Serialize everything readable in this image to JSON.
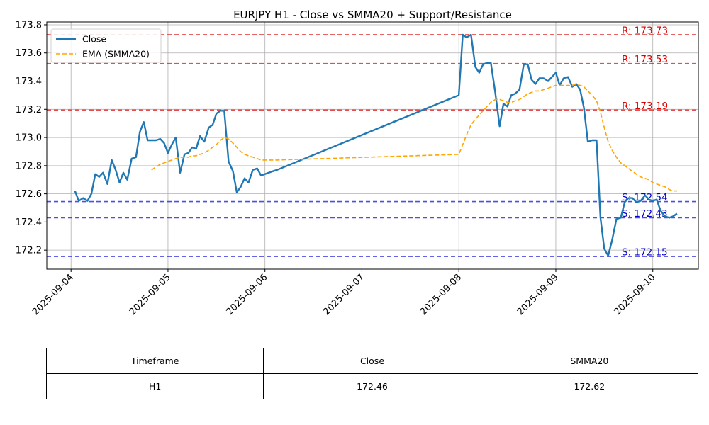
{
  "chart_data": {
    "type": "line",
    "title": "EURJPY H1 - Close vs SMMA20 + Support/Resistance",
    "xlabel": "",
    "ylabel": "",
    "grid": true,
    "legend_position": "top-left",
    "x_tick_labels": [
      "2025-09-04",
      "2025-09-05",
      "2025-09-06",
      "2025-09-07",
      "2025-09-08",
      "2025-09-09",
      "2025-09-10"
    ],
    "y_tick_labels": [
      "172.2",
      "172.4",
      "172.6",
      "172.8",
      "173.0",
      "173.2",
      "173.4",
      "173.6",
      "173.8"
    ],
    "xlim": [
      -0.25,
      6.47
    ],
    "ylim": [
      172.065,
      173.82
    ],
    "series": [
      {
        "name": "Close",
        "color": "#1f77b4",
        "style": "solid",
        "x": [
          0.04,
          0.08,
          0.125,
          0.17,
          0.21,
          0.25,
          0.29,
          0.33,
          0.375,
          0.42,
          0.46,
          0.5,
          0.54,
          0.58,
          0.625,
          0.67,
          0.71,
          0.75,
          0.79,
          0.83,
          0.875,
          0.92,
          0.96,
          1.0,
          1.04,
          1.08,
          1.125,
          1.17,
          1.21,
          1.25,
          1.29,
          1.33,
          1.375,
          1.42,
          1.46,
          1.5,
          1.54,
          1.58,
          1.625,
          1.67,
          1.71,
          1.75,
          1.79,
          1.83,
          1.875,
          1.92,
          1.96,
          2.0,
          2.04,
          2.08,
          2.125,
          3.999,
          4.04,
          4.08,
          4.125,
          4.17,
          4.21,
          4.25,
          4.29,
          4.33,
          4.375,
          4.42,
          4.46,
          4.5,
          4.54,
          4.58,
          4.625,
          4.67,
          4.71,
          4.75,
          4.79,
          4.83,
          4.875,
          4.92,
          4.96,
          5.0,
          5.04,
          5.08,
          5.125,
          5.17,
          5.21,
          5.25,
          5.29,
          5.33,
          5.375,
          5.42,
          5.46,
          5.5,
          5.54,
          5.58,
          5.625,
          5.67,
          5.71,
          5.75,
          5.79,
          5.83,
          5.875,
          5.92,
          5.96,
          6.0,
          6.04,
          6.08,
          6.125,
          6.17,
          6.21,
          6.25
        ],
        "values": [
          172.62,
          172.55,
          172.57,
          172.55,
          172.6,
          172.74,
          172.72,
          172.75,
          172.67,
          172.84,
          172.77,
          172.68,
          172.75,
          172.7,
          172.85,
          172.86,
          173.04,
          173.11,
          172.98,
          172.98,
          172.98,
          172.99,
          172.96,
          172.89,
          172.95,
          173.0,
          172.75,
          172.88,
          172.89,
          172.93,
          172.92,
          173.01,
          172.97,
          173.07,
          173.09,
          173.17,
          173.19,
          173.19,
          172.83,
          172.76,
          172.61,
          172.65,
          172.71,
          172.68,
          172.77,
          172.78,
          172.73,
          172.74,
          172.75,
          172.76,
          172.77,
          173.3,
          173.73,
          173.71,
          173.73,
          173.5,
          173.46,
          173.52,
          173.53,
          173.53,
          173.32,
          173.08,
          173.24,
          173.22,
          173.3,
          173.31,
          173.34,
          173.52,
          173.52,
          173.41,
          173.38,
          173.42,
          173.42,
          173.4,
          173.43,
          173.46,
          173.37,
          173.42,
          173.43,
          173.36,
          173.38,
          173.34,
          173.21,
          172.97,
          172.98,
          172.98,
          172.43,
          172.21,
          172.16,
          172.27,
          172.42,
          172.43,
          172.54,
          172.57,
          172.57,
          172.54,
          172.55,
          172.59,
          172.56,
          172.55,
          172.56,
          172.48,
          172.44,
          172.43,
          172.44,
          172.46
        ]
      },
      {
        "name": "EMA (SMMA20)",
        "color": "#ffa500",
        "style": "dashed",
        "x": [
          0.83,
          0.875,
          0.92,
          0.96,
          1.0,
          1.04,
          1.08,
          1.125,
          1.17,
          1.21,
          1.25,
          1.29,
          1.33,
          1.375,
          1.42,
          1.46,
          1.5,
          1.54,
          1.58,
          1.625,
          1.67,
          1.71,
          1.75,
          1.79,
          1.83,
          1.875,
          1.92,
          1.96,
          2.0,
          2.04,
          2.08,
          2.125,
          3.999,
          4.04,
          4.08,
          4.125,
          4.17,
          4.21,
          4.25,
          4.29,
          4.33,
          4.375,
          4.42,
          4.46,
          4.5,
          4.54,
          4.58,
          4.625,
          4.67,
          4.71,
          4.75,
          4.79,
          4.83,
          4.875,
          4.92,
          4.96,
          5.0,
          5.04,
          5.08,
          5.125,
          5.17,
          5.21,
          5.25,
          5.29,
          5.33,
          5.375,
          5.42,
          5.46,
          5.5,
          5.54,
          5.58,
          5.625,
          5.67,
          5.71,
          5.75,
          5.79,
          5.83,
          5.875,
          5.92,
          5.96,
          6.0,
          6.04,
          6.08,
          6.125,
          6.17,
          6.21,
          6.25
        ],
        "values": [
          172.77,
          172.79,
          172.81,
          172.82,
          172.83,
          172.84,
          172.85,
          172.86,
          172.86,
          172.86,
          172.87,
          172.87,
          172.88,
          172.89,
          172.91,
          172.93,
          172.95,
          172.98,
          173.0,
          172.99,
          172.96,
          172.93,
          172.9,
          172.88,
          172.87,
          172.86,
          172.85,
          172.84,
          172.84,
          172.84,
          172.84,
          172.84,
          172.88,
          172.95,
          173.02,
          173.09,
          173.13,
          173.16,
          173.19,
          173.22,
          173.25,
          173.27,
          173.27,
          173.26,
          173.25,
          173.25,
          173.26,
          173.27,
          173.29,
          173.31,
          173.32,
          173.33,
          173.33,
          173.34,
          173.35,
          173.36,
          173.37,
          173.37,
          173.37,
          173.37,
          173.37,
          173.38,
          173.37,
          173.36,
          173.33,
          173.3,
          173.26,
          173.18,
          173.07,
          172.97,
          172.91,
          172.86,
          172.82,
          172.8,
          172.78,
          172.76,
          172.74,
          172.72,
          172.71,
          172.7,
          172.68,
          172.67,
          172.66,
          172.65,
          172.63,
          172.62,
          172.62
        ]
      }
    ],
    "levels": [
      {
        "kind": "resistance",
        "value": 173.73,
        "label": "R: 173.73",
        "color": "#e03030"
      },
      {
        "kind": "resistance",
        "value": 173.525,
        "label": "R: 173.53",
        "color": "#e03030"
      },
      {
        "kind": "resistance",
        "value": 173.195,
        "label": "R: 173.19",
        "color": "#e03030"
      },
      {
        "kind": "support",
        "value": 172.545,
        "label": "S: 172.54",
        "color": "#3030e0"
      },
      {
        "kind": "support",
        "value": 172.43,
        "label": "S: 172.43",
        "color": "#3030e0"
      },
      {
        "kind": "support",
        "value": 172.155,
        "label": "S: 172.15",
        "color": "#3030e0"
      }
    ]
  },
  "table": {
    "headers": [
      "Timeframe",
      "Close",
      "SMMA20"
    ],
    "row": [
      "H1",
      "172.46",
      "172.62"
    ]
  }
}
